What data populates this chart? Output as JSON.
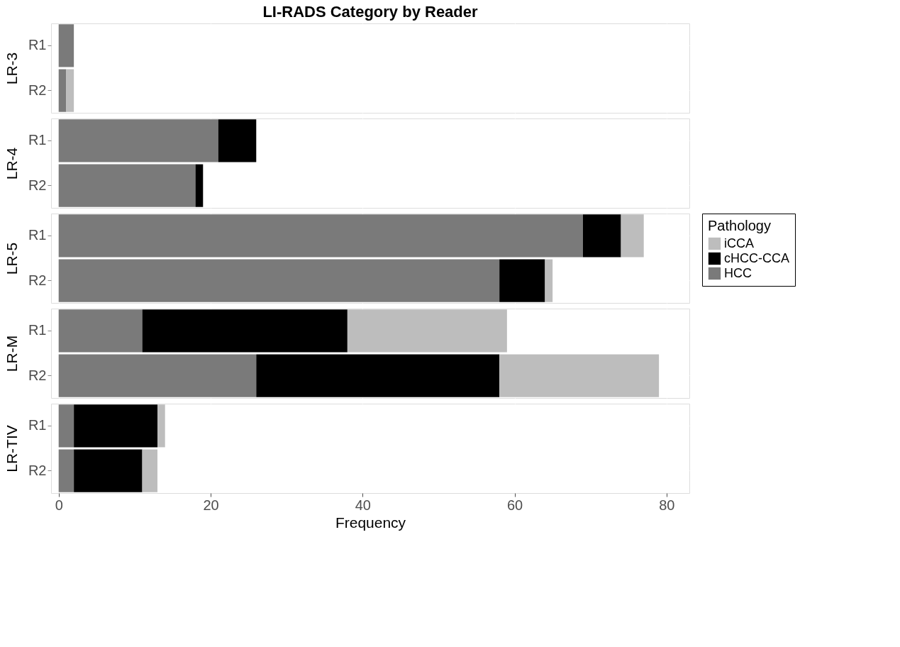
{
  "chart_data": [
    {
      "type": "bar",
      "orientation": "horizontal",
      "stacked": true,
      "title": "LI-RADS Category by Reader",
      "ylabel": "LR-3",
      "categories": [
        "R1",
        "R2"
      ],
      "xlim": [
        -1,
        83
      ],
      "xticks": [
        0,
        20,
        40,
        60,
        80
      ],
      "grid": true,
      "tick_labels": "y",
      "series": [
        {
          "color": "#7a7a7a",
          "values": [
            2,
            1
          ]
        },
        {
          "color": "#000000",
          "values": [
            0,
            0
          ]
        },
        {
          "color": "#bdbdbd",
          "values": [
            0,
            1
          ]
        }
      ]
    },
    {
      "type": "bar",
      "orientation": "horizontal",
      "stacked": true,
      "ylabel": "LR-4",
      "categories": [
        "R1",
        "R2"
      ],
      "xlim": [
        -1,
        83
      ],
      "xticks": [
        0,
        20,
        40,
        60,
        80
      ],
      "grid": true,
      "tick_labels": "y",
      "series": [
        {
          "color": "#7a7a7a",
          "values": [
            21,
            18
          ]
        },
        {
          "color": "#000000",
          "values": [
            5,
            1
          ]
        },
        {
          "color": "#bdbdbd",
          "values": [
            0,
            0
          ]
        }
      ]
    },
    {
      "type": "bar",
      "orientation": "horizontal",
      "stacked": true,
      "ylabel": "LR-5",
      "legend_title": "Pathology",
      "categories": [
        "R1",
        "R2"
      ],
      "xlim": [
        -1,
        83
      ],
      "xticks": [
        0,
        20,
        40,
        60,
        80
      ],
      "grid": true,
      "tick_labels": "y",
      "legend": "right",
      "series": [
        {
          "name": "HCC",
          "color": "#7a7a7a",
          "values": [
            69,
            58
          ]
        },
        {
          "name": "cHCC-CCA",
          "color": "#000000",
          "values": [
            5,
            6
          ]
        },
        {
          "name": "iCCA",
          "color": "#bdbdbd",
          "values": [
            3,
            1
          ]
        }
      ]
    },
    {
      "type": "bar",
      "orientation": "horizontal",
      "stacked": true,
      "ylabel": "LR-M",
      "categories": [
        "R1",
        "R2"
      ],
      "xlim": [
        -1,
        83
      ],
      "xticks": [
        0,
        20,
        40,
        60,
        80
      ],
      "grid": true,
      "tick_labels": "y",
      "series": [
        {
          "color": "#7a7a7a",
          "values": [
            11,
            26
          ]
        },
        {
          "color": "#000000",
          "values": [
            27,
            32
          ]
        },
        {
          "color": "#bdbdbd",
          "values": [
            21,
            21
          ]
        }
      ]
    },
    {
      "type": "bar",
      "orientation": "horizontal",
      "stacked": true,
      "ylabel": "LR-TIV",
      "xlabel": "Frequency",
      "categories": [
        "R1",
        "R2"
      ],
      "xlim": [
        -1,
        83
      ],
      "xticks": [
        0,
        20,
        40,
        60,
        80
      ],
      "grid": true,
      "series": [
        {
          "color": "#7a7a7a",
          "values": [
            2,
            2
          ]
        },
        {
          "color": "#000000",
          "values": [
            11,
            9
          ]
        },
        {
          "color": "#bdbdbd",
          "values": [
            1,
            2
          ]
        }
      ]
    }
  ]
}
